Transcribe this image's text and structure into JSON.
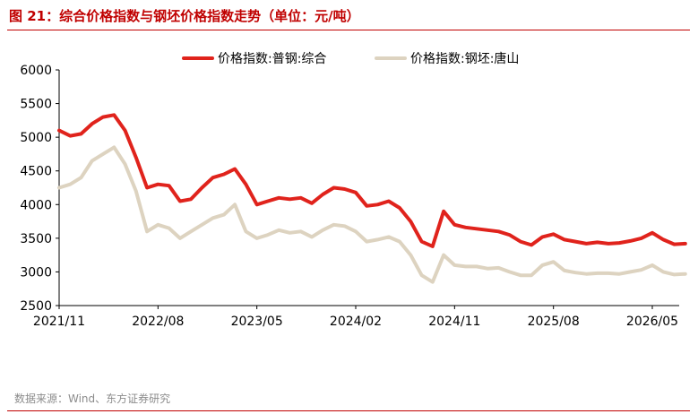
{
  "figure": {
    "title": "图 21：综合价格指数与钢坯价格指数走势（单位：元/吨）",
    "source": "数据来源：Wind、东方证券研究"
  },
  "colors": {
    "red": "#e0231c",
    "beige": "#ddd3c0",
    "title": "#c00000"
  },
  "chart_data": {
    "type": "line",
    "title": "",
    "xlabel": "",
    "ylabel": "",
    "ylim": [
      2500,
      6000
    ],
    "yticks": [
      "6000",
      "5500",
      "5000",
      "4500",
      "4000",
      "3500",
      "3000",
      "2500"
    ],
    "xticks": [
      "2021/11",
      "2022/08",
      "2023/05",
      "2024/02",
      "2024/11",
      "2025/08",
      "2026/05"
    ],
    "legend_position": "top",
    "grid": false,
    "series": [
      {
        "name": "价格指数:普钢:综合",
        "color": "#e0231c",
        "points": [
          [
            "2021/11",
            5100
          ],
          [
            "2021/12",
            5020
          ],
          [
            "2022/01",
            5050
          ],
          [
            "2022/02",
            5200
          ],
          [
            "2022/03",
            5300
          ],
          [
            "2022/04",
            5330
          ],
          [
            "2022/05",
            5100
          ],
          [
            "2022/06",
            4700
          ],
          [
            "2022/07",
            4250
          ],
          [
            "2022/08",
            4300
          ],
          [
            "2022/09",
            4280
          ],
          [
            "2022/10",
            4050
          ],
          [
            "2022/11",
            4080
          ],
          [
            "2022/12",
            4250
          ],
          [
            "2023/01",
            4400
          ],
          [
            "2023/02",
            4450
          ],
          [
            "2023/03",
            4530
          ],
          [
            "2023/04",
            4300
          ],
          [
            "2023/05",
            4000
          ],
          [
            "2023/06",
            4050
          ],
          [
            "2023/07",
            4100
          ],
          [
            "2023/08",
            4080
          ],
          [
            "2023/09",
            4100
          ],
          [
            "2023/10",
            4020
          ],
          [
            "2023/11",
            4150
          ],
          [
            "2023/12",
            4250
          ],
          [
            "2024/01",
            4230
          ],
          [
            "2024/02",
            4180
          ],
          [
            "2024/03",
            3980
          ],
          [
            "2024/04",
            4000
          ],
          [
            "2024/05",
            4050
          ],
          [
            "2024/06",
            3950
          ],
          [
            "2024/07",
            3750
          ],
          [
            "2024/08",
            3450
          ],
          [
            "2024/09",
            3380
          ],
          [
            "2024/10",
            3900
          ],
          [
            "2024/11",
            3700
          ],
          [
            "2024/12",
            3660
          ],
          [
            "2025/01",
            3640
          ],
          [
            "2025/02",
            3620
          ],
          [
            "2025/03",
            3600
          ],
          [
            "2025/04",
            3550
          ],
          [
            "2025/05",
            3450
          ],
          [
            "2025/06",
            3400
          ],
          [
            "2025/07",
            3520
          ],
          [
            "2025/08",
            3560
          ],
          [
            "2025/09",
            3480
          ],
          [
            "2025/10",
            3450
          ],
          [
            "2025/11",
            3420
          ],
          [
            "2025/12",
            3440
          ],
          [
            "2026/01",
            3420
          ],
          [
            "2026/02",
            3430
          ],
          [
            "2026/03",
            3460
          ],
          [
            "2026/04",
            3500
          ],
          [
            "2026/05",
            3580
          ],
          [
            "2026/06",
            3480
          ],
          [
            "2026/07",
            3410
          ],
          [
            "2026/08",
            3420
          ]
        ]
      },
      {
        "name": "价格指数:钢坯:唐山",
        "color": "#ddd3c0",
        "points": [
          [
            "2021/11",
            4250
          ],
          [
            "2021/12",
            4300
          ],
          [
            "2022/01",
            4400
          ],
          [
            "2022/02",
            4650
          ],
          [
            "2022/03",
            4750
          ],
          [
            "2022/04",
            4850
          ],
          [
            "2022/05",
            4600
          ],
          [
            "2022/06",
            4200
          ],
          [
            "2022/07",
            3600
          ],
          [
            "2022/08",
            3700
          ],
          [
            "2022/09",
            3650
          ],
          [
            "2022/10",
            3500
          ],
          [
            "2022/11",
            3600
          ],
          [
            "2022/12",
            3700
          ],
          [
            "2023/01",
            3800
          ],
          [
            "2023/02",
            3850
          ],
          [
            "2023/03",
            4000
          ],
          [
            "2023/04",
            3600
          ],
          [
            "2023/05",
            3500
          ],
          [
            "2023/06",
            3550
          ],
          [
            "2023/07",
            3620
          ],
          [
            "2023/08",
            3580
          ],
          [
            "2023/09",
            3600
          ],
          [
            "2023/10",
            3520
          ],
          [
            "2023/11",
            3620
          ],
          [
            "2023/12",
            3700
          ],
          [
            "2024/01",
            3680
          ],
          [
            "2024/02",
            3600
          ],
          [
            "2024/03",
            3450
          ],
          [
            "2024/04",
            3480
          ],
          [
            "2024/05",
            3520
          ],
          [
            "2024/06",
            3450
          ],
          [
            "2024/07",
            3250
          ],
          [
            "2024/08",
            2950
          ],
          [
            "2024/09",
            2850
          ],
          [
            "2024/10",
            3250
          ],
          [
            "2024/11",
            3100
          ],
          [
            "2024/12",
            3080
          ],
          [
            "2025/01",
            3080
          ],
          [
            "2025/02",
            3050
          ],
          [
            "2025/03",
            3060
          ],
          [
            "2025/04",
            3000
          ],
          [
            "2025/05",
            2950
          ],
          [
            "2025/06",
            2950
          ],
          [
            "2025/07",
            3100
          ],
          [
            "2025/08",
            3150
          ],
          [
            "2025/09",
            3020
          ],
          [
            "2025/10",
            2990
          ],
          [
            "2025/11",
            2970
          ],
          [
            "2025/12",
            2980
          ],
          [
            "2026/01",
            2980
          ],
          [
            "2026/02",
            2970
          ],
          [
            "2026/03",
            3000
          ],
          [
            "2026/04",
            3030
          ],
          [
            "2026/05",
            3100
          ],
          [
            "2026/06",
            3000
          ],
          [
            "2026/07",
            2960
          ],
          [
            "2026/08",
            2970
          ]
        ]
      }
    ]
  }
}
